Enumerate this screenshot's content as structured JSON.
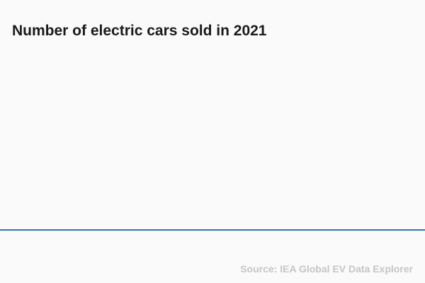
{
  "chart": {
    "title": "Number of electric cars sold in 2021",
    "source": "Source: IEA Global EV Data Explorer"
  },
  "colors": {
    "background": "#fafafa",
    "title_text": "#1a1a1a",
    "axis_baseline": "#36749f",
    "source_text": "#c5c5c5"
  },
  "chart_data": {
    "type": "bar",
    "title": "Number of electric cars sold in 2021",
    "categories": [],
    "series": [],
    "xlabel": "",
    "ylabel": "",
    "legend": "none",
    "grid": "off",
    "notes": "Plot area is empty; only the bottom x-axis baseline is rendered. Source credit shown bottom-right."
  }
}
